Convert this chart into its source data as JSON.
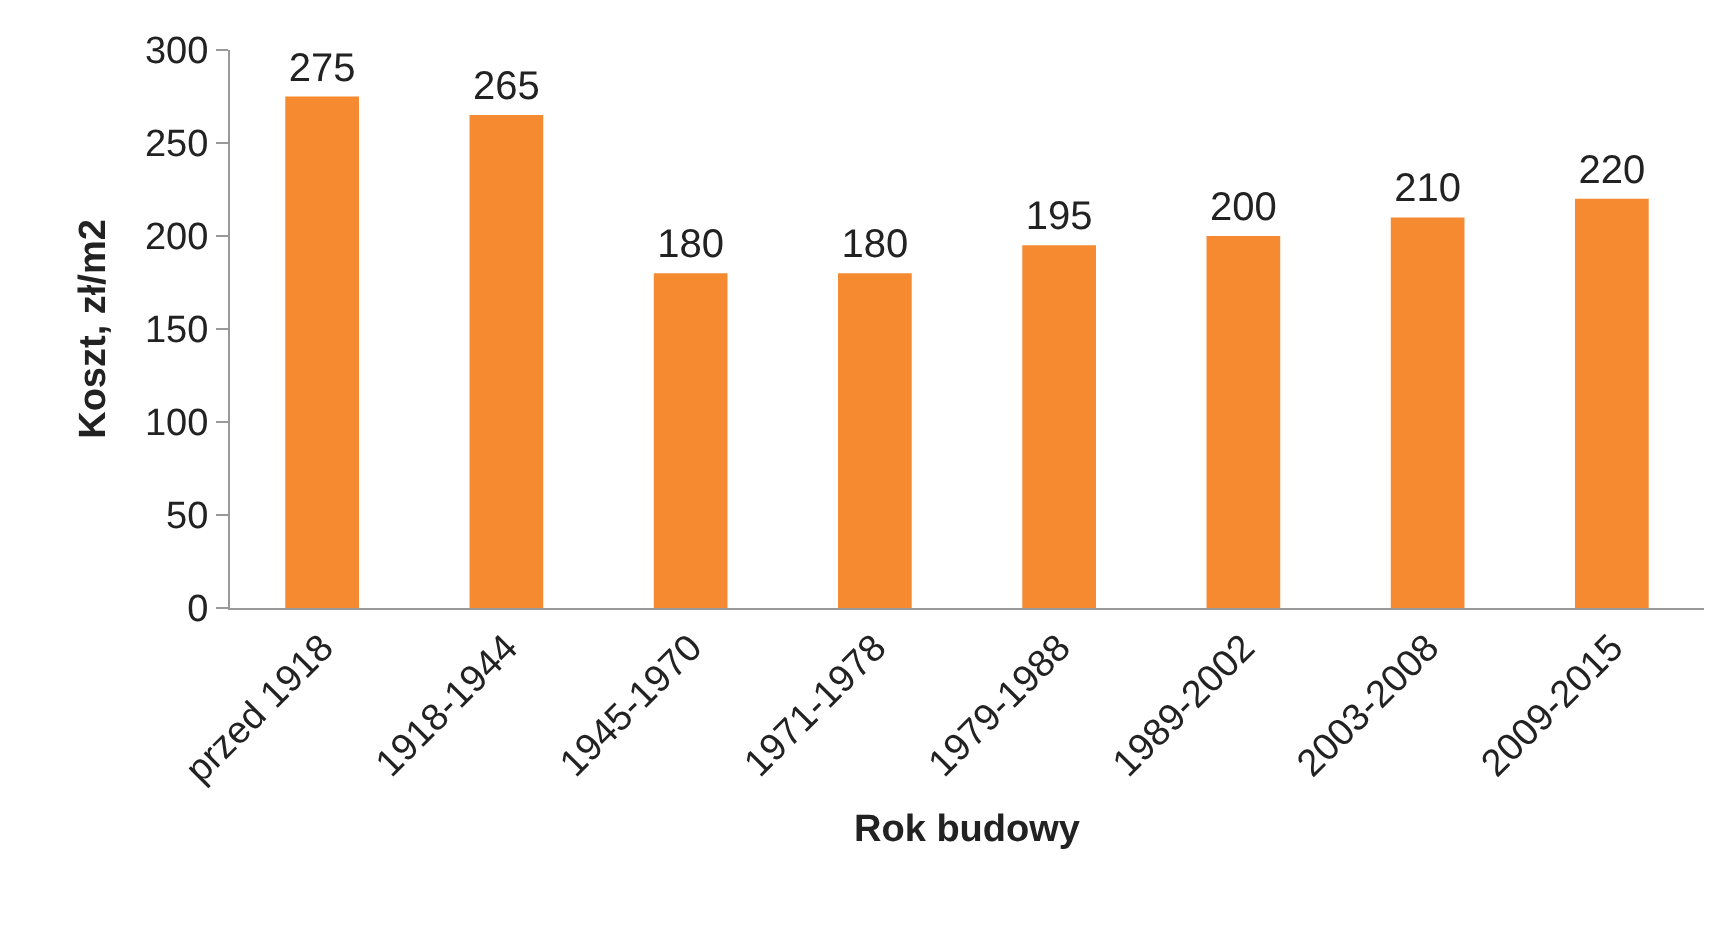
{
  "chart_data": {
    "type": "bar",
    "xlabel": "Rok budowy",
    "ylabel": "Koszt, zł/m2",
    "categories": [
      "przed 1918",
      "1918-1944",
      "1945-1970",
      "1971-1978",
      "1979-1988",
      "1989-2002",
      "2003-2008",
      "2009-2015"
    ],
    "values": [
      275,
      265,
      180,
      180,
      195,
      200,
      210,
      220
    ],
    "color": "#f58a31",
    "ylim": [
      0,
      300
    ],
    "yticks": [
      0,
      50,
      100,
      150,
      200,
      250,
      300
    ],
    "grid": false,
    "legend": false,
    "data_labels": true
  }
}
